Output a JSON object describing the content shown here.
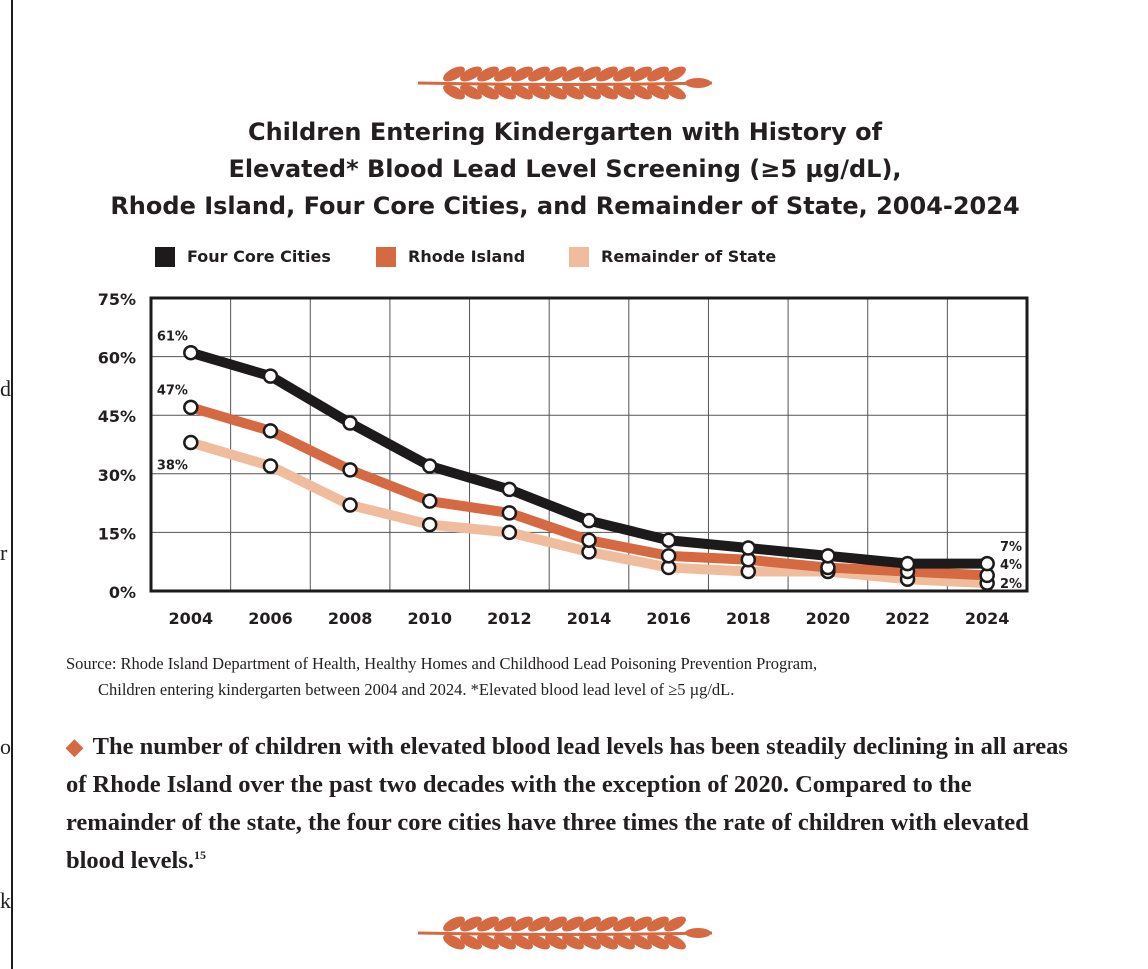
{
  "chart_data": {
    "type": "line",
    "title_lines": [
      "Children Entering Kindergarten with History of",
      "Elevated* Blood Lead Level Screening (≥5 µg/dL),",
      "Rhode Island, Four Core Cities, and Remainder of State, 2004-2024"
    ],
    "x": [
      2004,
      2006,
      2008,
      2010,
      2012,
      2014,
      2016,
      2018,
      2020,
      2022,
      2024
    ],
    "x_tick_labels": [
      "2004",
      "2006",
      "2008",
      "2010",
      "2012",
      "2014",
      "2016",
      "2018",
      "2020",
      "2022",
      "2024"
    ],
    "y_tick_labels": [
      "0%",
      "15%",
      "30%",
      "45%",
      "60%",
      "75%"
    ],
    "ylim": [
      0,
      75
    ],
    "grid": true,
    "legend_position": "top",
    "series": [
      {
        "name": "Remainder of State",
        "color": "#efbd9d",
        "values": [
          38,
          32,
          22,
          17,
          15,
          10,
          6,
          5,
          5,
          3,
          2
        ]
      },
      {
        "name": "Rhode Island",
        "color": "#d56a42",
        "values": [
          47,
          41,
          31,
          23,
          20,
          13,
          9,
          8,
          6,
          5,
          4
        ]
      },
      {
        "name": "Four Core Cities",
        "color": "#1c1a1b",
        "values": [
          61,
          55,
          43,
          32,
          26,
          18,
          13,
          11,
          9,
          7,
          7
        ]
      }
    ],
    "legend_order": [
      "Four Core Cities",
      "Rhode Island",
      "Remainder of State"
    ],
    "start_labels": [
      "61%",
      "47%",
      "38%"
    ],
    "end_labels": [
      "7%",
      "4%",
      "2%"
    ]
  },
  "source": {
    "line1": "Source:  Rhode Island Department of Health, Healthy Homes and Childhood Lead Poisoning Prevention Program,",
    "line2": "Children entering kindergarten between 2004 and 2024. *Elevated blood lead level of ≥5 µg/dL."
  },
  "finding": {
    "bullet": "◆",
    "text": "The number of children with elevated blood lead levels has been steadily declining in all areas of Rhode Island over the past two decades with the exception of 2020. Compared to the remainder of the state, the four core cities have three times the rate of children with elevated blood levels.",
    "footnote": "15"
  },
  "margin_fragments": [
    "d",
    "r",
    "o",
    "k"
  ],
  "colors": {
    "accent": "#d56a42",
    "grid": "#555555",
    "text": "#231f20"
  }
}
